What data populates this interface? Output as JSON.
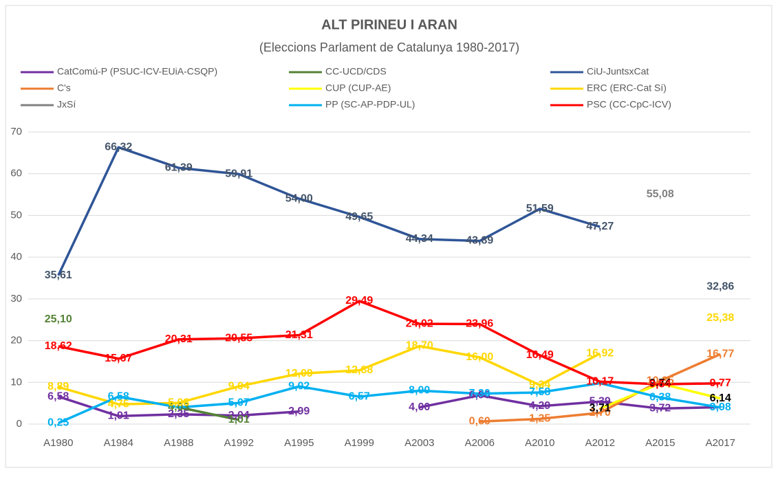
{
  "chart_data": {
    "type": "line",
    "title": "ALT PIRINEU I ARAN",
    "subtitle": "(Eleccions Parlament de Catalunya 1980-2017)",
    "categories": [
      "A1980",
      "A1984",
      "A1988",
      "A1992",
      "A1995",
      "A1999",
      "A2003",
      "A2006",
      "A2010",
      "A2012",
      "A2015",
      "A2017"
    ],
    "ylim": [
      0,
      70
    ],
    "yticks": [
      0,
      10,
      20,
      30,
      40,
      50,
      60,
      70
    ],
    "grid": true,
    "legend": "top",
    "series": [
      {
        "name": "CatComú-P (PSUC-ICV-EUiA-CSQP)",
        "color": "#7030a0",
        "values": [
          6.58,
          1.91,
          2.35,
          2.04,
          2.99,
          null,
          4.0,
          6.9,
          4.29,
          5.39,
          3.72,
          4.05
        ],
        "value_labels": [
          "6,58",
          "1,91",
          "2,35",
          "2,04",
          "2,99",
          null,
          "4,00",
          "6,90",
          "4,29",
          "5,39",
          "3,72",
          null
        ]
      },
      {
        "name": "CC-UCD/CDS",
        "color": "#548235",
        "values": [
          25.1,
          null,
          4.03,
          1.01,
          null,
          null,
          null,
          null,
          null,
          null,
          null,
          null
        ],
        "value_labels": [
          "25,10",
          null,
          "4,03",
          "1,01",
          null,
          null,
          null,
          null,
          null,
          null,
          null,
          null
        ]
      },
      {
        "name": "CiU-JuntsxCat",
        "color": "#2f5597",
        "label_color": "#44546a",
        "values": [
          35.61,
          66.32,
          61.39,
          59.91,
          54.0,
          49.65,
          44.34,
          43.89,
          51.59,
          47.27,
          null,
          32.86
        ],
        "value_labels": [
          "35,61",
          "66,32",
          "61,39",
          "59,91",
          "54,00",
          "49,65",
          "44,34",
          "43,89",
          "51,59",
          "47,27",
          null,
          "32,86"
        ]
      },
      {
        "name": "C's",
        "color": "#ed7d31",
        "values": [
          null,
          null,
          null,
          null,
          null,
          null,
          null,
          0.6,
          1.25,
          2.7,
          10.35,
          16.77
        ],
        "value_labels": [
          null,
          null,
          null,
          null,
          null,
          null,
          null,
          "0,60",
          "1,25",
          "2,70",
          "10,35",
          "16,77"
        ]
      },
      {
        "name": "CUP (CUP-AE)",
        "color": "#ffff00",
        "label_color": "#000000",
        "values": [
          null,
          null,
          null,
          null,
          null,
          null,
          null,
          null,
          null,
          3.71,
          9.74,
          6.14
        ],
        "value_labels": [
          null,
          null,
          null,
          null,
          null,
          null,
          null,
          null,
          null,
          "3,71",
          "9,74",
          "6,14"
        ]
      },
      {
        "name": "ERC (ERC-Cat Sí)",
        "color": "#ffd700",
        "values": [
          8.89,
          4.75,
          5.08,
          9.04,
          12.09,
          12.88,
          18.7,
          16.0,
          9.34,
          16.92,
          null,
          25.38
        ],
        "value_labels": [
          "8,89",
          "4,75",
          "5,08",
          "9,04",
          "12,09",
          "12,88",
          "18,70",
          "16,00",
          "9,34",
          "16,92",
          null,
          "25,38"
        ]
      },
      {
        "name": "JxSí",
        "color": "#808080",
        "values": [
          null,
          null,
          null,
          null,
          null,
          null,
          null,
          null,
          null,
          null,
          55.08,
          null
        ],
        "value_labels": [
          null,
          null,
          null,
          null,
          null,
          null,
          null,
          null,
          null,
          null,
          "55,08",
          null
        ]
      },
      {
        "name": "PP (SC-AP-PDP-UL)",
        "color": "#00b0f0",
        "values": [
          0.25,
          6.58,
          4.0,
          5.07,
          9.02,
          6.57,
          8.0,
          7.3,
          7.58,
          9.8,
          6.38,
          3.98
        ],
        "value_labels": [
          "0,25",
          "6,58",
          null,
          "5,07",
          "9,02",
          "6,57",
          "8,00",
          "7,30",
          "7,58",
          null,
          "6,38",
          "3,98"
        ]
      },
      {
        "name": "PSC (CC-CpC-ICV)",
        "color": "#ff0000",
        "values": [
          18.62,
          15.67,
          20.31,
          20.55,
          21.31,
          29.49,
          24.02,
          23.96,
          16.49,
          10.17,
          9.54,
          9.77
        ],
        "value_labels": [
          "18,62",
          "15,67",
          "20,31",
          "20,55",
          "21,31",
          "29,49",
          "24,02",
          "23,96",
          "16,49",
          "10,17",
          "9,54",
          "9,77"
        ]
      }
    ]
  }
}
